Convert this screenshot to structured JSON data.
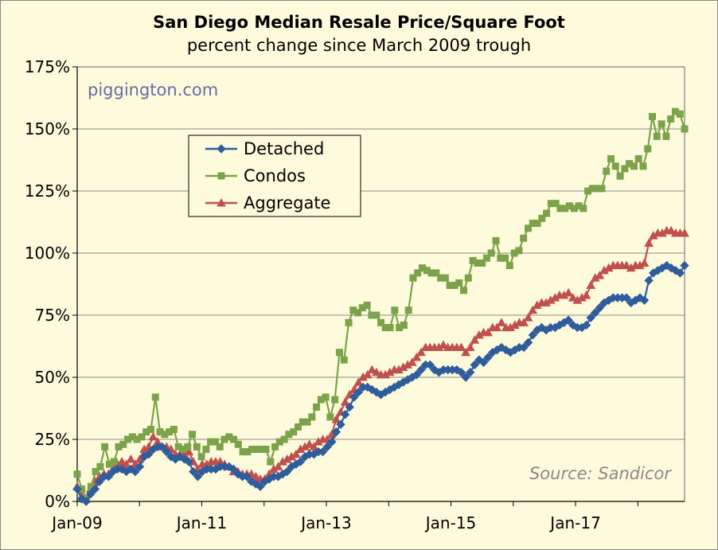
{
  "chart_data": {
    "type": "line",
    "title": "San Diego Median Resale Price/Square Foot",
    "subtitle": "percent change since March 2009 trough",
    "watermark": "piggington.com",
    "source": "Source: Sandicor",
    "ylim": [
      0,
      175
    ],
    "ytick_values": [
      0,
      25,
      50,
      75,
      100,
      125,
      150,
      175
    ],
    "ytick_labels": [
      "0%",
      "25%",
      "50%",
      "75%",
      "100%",
      "125%",
      "150%",
      "175%"
    ],
    "xlim": [
      0,
      117
    ],
    "xtick_values": [
      0,
      24,
      48,
      72,
      96
    ],
    "xtick_labels": [
      "Jan-09",
      "Jan-11",
      "Jan-13",
      "Jan-15",
      "Jan-17"
    ],
    "x_unit": "months since Jan-09",
    "series": [
      {
        "name": "Detached",
        "color": "#2f5c9c",
        "marker": "diamond",
        "values": [
          5,
          1,
          0,
          3,
          5,
          8,
          10,
          10,
          12,
          13,
          13,
          12,
          13,
          12,
          14,
          18,
          19,
          21,
          22,
          22,
          20,
          18,
          17,
          18,
          17,
          16,
          12,
          10,
          12,
          13,
          13,
          13,
          14,
          14,
          14,
          13,
          11,
          10,
          10,
          8,
          7,
          6,
          8,
          9,
          10,
          10,
          11,
          12,
          14,
          15,
          16,
          18,
          19,
          19,
          20,
          20,
          22,
          24,
          28,
          31,
          35,
          38,
          42,
          44,
          46,
          46,
          45,
          44,
          43,
          44,
          45,
          46,
          47,
          48,
          49,
          50,
          51,
          53,
          55,
          55,
          53,
          52,
          53,
          53,
          53,
          53,
          52,
          50,
          52,
          55,
          57,
          56,
          58,
          60,
          61,
          62,
          61,
          60,
          61,
          62,
          62,
          64,
          67,
          69,
          70,
          69,
          70,
          70,
          71,
          72,
          73,
          71,
          70,
          70,
          71,
          74,
          76,
          78,
          80,
          81,
          82,
          82,
          82,
          82,
          80,
          81,
          82,
          81,
          89,
          92,
          93,
          94,
          95,
          94,
          93,
          92,
          95
        ]
      },
      {
        "name": "Condos",
        "color": "#7da34a",
        "marker": "square",
        "values": [
          11,
          5,
          1,
          6,
          12,
          14,
          22,
          15,
          16,
          22,
          23,
          25,
          26,
          25,
          26,
          28,
          29,
          42,
          28,
          27,
          28,
          29,
          22,
          21,
          22,
          27,
          22,
          18,
          21,
          24,
          24,
          22,
          25,
          26,
          25,
          23,
          20,
          20,
          21,
          21,
          21,
          21,
          16,
          22,
          24,
          25,
          27,
          28,
          30,
          32,
          32,
          34,
          38,
          41,
          42,
          34,
          41,
          60,
          57,
          72,
          77,
          76,
          78,
          79,
          75,
          75,
          72,
          70,
          70,
          77,
          70,
          71,
          77,
          90,
          92,
          94,
          93,
          92,
          92,
          90,
          90,
          87,
          87,
          88,
          85,
          90,
          97,
          96,
          96,
          98,
          100,
          105,
          98,
          98,
          95,
          100,
          101,
          106,
          110,
          112,
          112,
          114,
          116,
          120,
          120,
          118,
          118,
          119,
          118,
          119,
          118,
          125,
          126,
          126,
          126,
          133,
          138,
          135,
          131,
          134,
          136,
          135,
          138,
          135,
          142,
          155,
          147,
          152,
          147,
          154,
          157,
          156,
          150
        ]
      },
      {
        "name": "Aggregate",
        "color": "#c0504d",
        "marker": "triangle",
        "values": [
          6,
          2,
          1,
          5,
          8,
          10,
          11,
          11,
          13,
          15,
          16,
          15,
          17,
          15,
          17,
          21,
          22,
          26,
          24,
          22,
          22,
          21,
          19,
          19,
          19,
          20,
          16,
          13,
          15,
          15,
          16,
          16,
          16,
          15,
          14,
          12,
          12,
          11,
          11,
          11,
          10,
          9,
          9,
          11,
          13,
          14,
          16,
          17,
          18,
          19,
          21,
          22,
          23,
          22,
          24,
          25,
          25,
          27,
          33,
          36,
          40,
          43,
          45,
          48,
          50,
          51,
          53,
          52,
          51,
          51,
          52,
          53,
          53,
          54,
          55,
          56,
          58,
          60,
          62,
          62,
          62,
          62,
          63,
          62,
          62,
          62,
          62,
          60,
          62,
          65,
          67,
          68,
          68,
          70,
          70,
          72,
          70,
          70,
          71,
          72,
          72,
          74,
          77,
          79,
          80,
          80,
          81,
          82,
          83,
          83,
          84,
          82,
          81,
          82,
          83,
          87,
          90,
          91,
          93,
          94,
          95,
          95,
          95,
          95,
          94,
          95,
          95,
          96,
          104,
          107,
          108,
          108,
          109,
          109,
          108,
          108,
          108
        ]
      }
    ],
    "legend": [
      {
        "label": "Detached"
      },
      {
        "label": "Condos"
      },
      {
        "label": "Aggregate"
      }
    ],
    "colors": {
      "background": "#fefbdd",
      "plot_bg": "#fefbdd",
      "grid": "#8c8c8c"
    }
  }
}
